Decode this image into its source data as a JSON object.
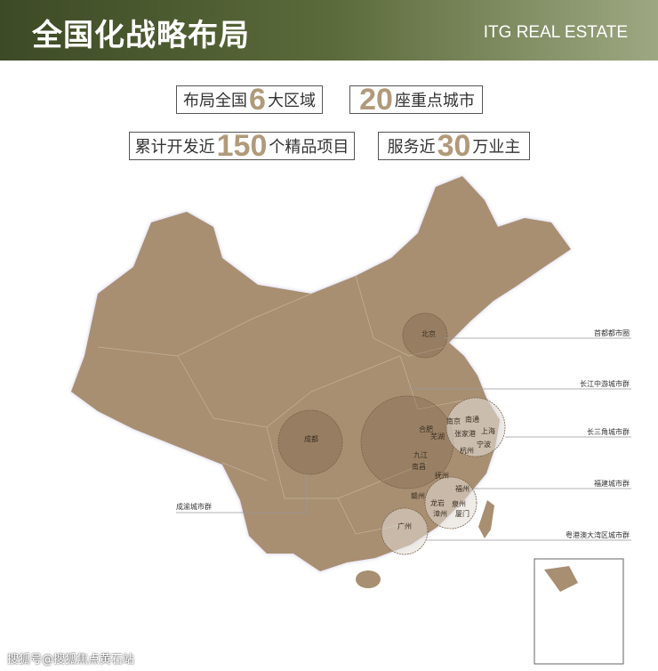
{
  "header": {
    "title": "全国化战略布局",
    "brand": "ITG REAL ESTATE"
  },
  "stats": [
    {
      "pre": "布局全国",
      "num": "6",
      "post": "大区域"
    },
    {
      "pre": "",
      "num": "20",
      "post": "座重点城市"
    },
    {
      "pre": "累计开发近",
      "num": "150",
      "post": "个精品项目"
    },
    {
      "pre": "服务近",
      "num": "30",
      "post": "万业主"
    }
  ],
  "regions": [
    "首都都市圈",
    "长江中游城市群",
    "长三角城市群",
    "福建城市群",
    "粤港澳大湾区城市群",
    "成渝城市群"
  ],
  "cities": [
    "北京",
    "成都",
    "南京",
    "南通",
    "合肥",
    "芜湖",
    "张家港",
    "上海",
    "宁波",
    "杭州",
    "九江",
    "南昌",
    "抚州",
    "福州",
    "赣州",
    "龙岩",
    "泉州",
    "漳州",
    "厦门",
    "广州"
  ],
  "colors": {
    "map": "#a88f72",
    "accent": "#b19a7a",
    "header_dark": "#3d4a26",
    "header_light": "#9da882"
  },
  "watermark": "搜狐号@搜狐焦点黄石站"
}
